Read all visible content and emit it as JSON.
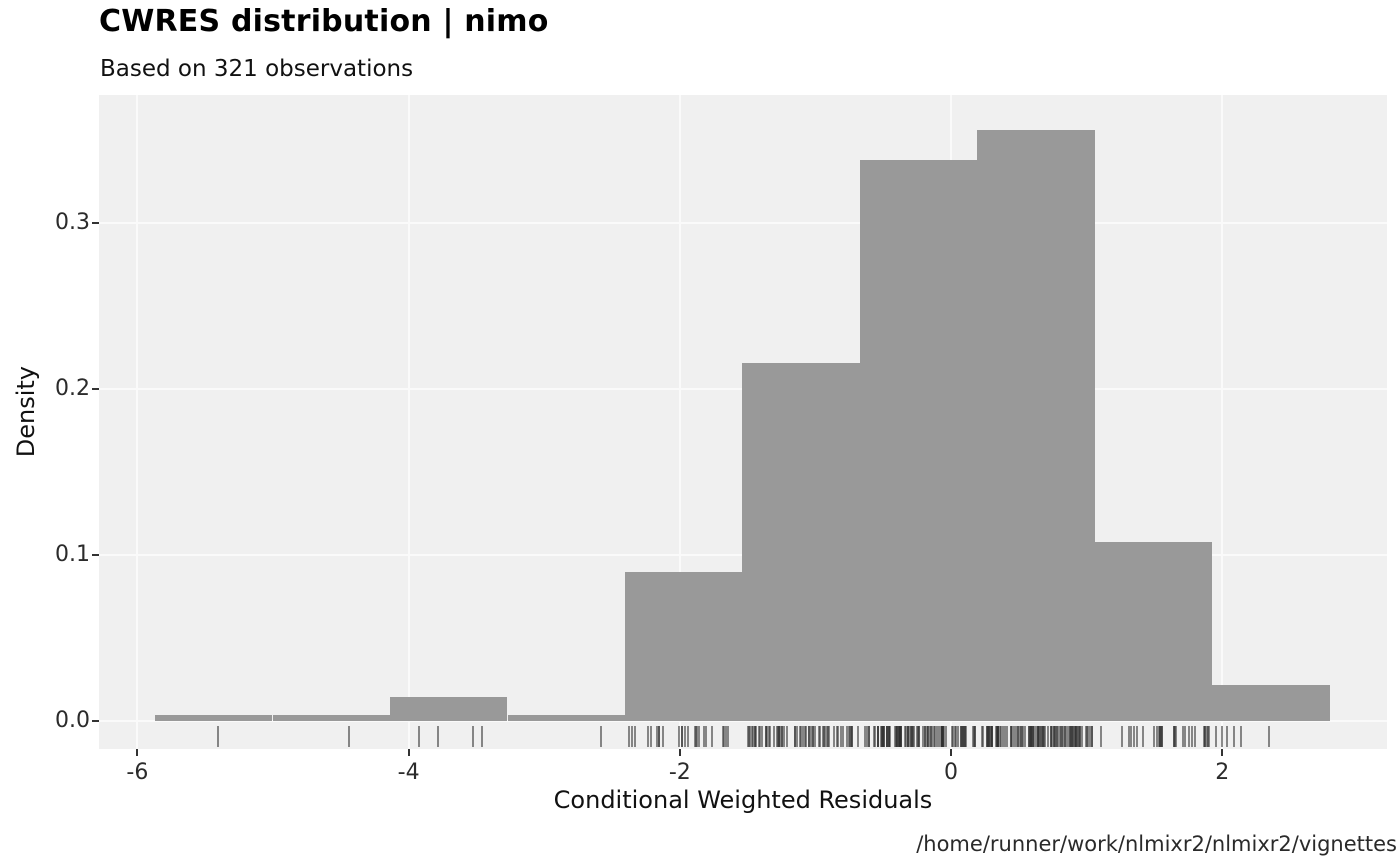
{
  "header": {
    "title": "CWRES distribution | nimo",
    "subtitle": "Based on 321 observations"
  },
  "caption": "/home/runner/work/nlmixr2/nlmixr2/vignettes",
  "chart_data": {
    "type": "bar",
    "subtype": "histogram-density-with-rug",
    "title": "CWRES distribution | nimo",
    "subtitle": "Based on 321 observations",
    "xlabel": "Conditional Weighted Residuals",
    "ylabel": "Density",
    "n_observations": 321,
    "binwidth": 0.866,
    "xlim": [
      -6.28,
      3.21
    ],
    "ylim": [
      0,
      0.377
    ],
    "x_ticks": [
      -6,
      -4,
      -2,
      0,
      2
    ],
    "x_tick_labels": [
      "-6",
      "-4",
      "-2",
      "0",
      "2"
    ],
    "y_ticks": [
      0.0,
      0.1,
      0.2,
      0.3
    ],
    "y_tick_labels": [
      "0.0",
      "0.1",
      "0.2",
      "0.3"
    ],
    "grid": true,
    "legend": "none",
    "bins": [
      {
        "x0": -5.871,
        "x1": -5.004,
        "count": 1,
        "density": 0.0036
      },
      {
        "x0": -5.004,
        "x1": -4.137,
        "count": 1,
        "density": 0.0036
      },
      {
        "x0": -4.137,
        "x1": -3.271,
        "count": 4,
        "density": 0.0144
      },
      {
        "x0": -3.271,
        "x1": -2.404,
        "count": 1,
        "density": 0.0036
      },
      {
        "x0": -2.404,
        "x1": -1.538,
        "count": 25,
        "density": 0.0899
      },
      {
        "x0": -1.538,
        "x1": -0.671,
        "count": 60,
        "density": 0.2157
      },
      {
        "x0": -0.671,
        "x1": 0.195,
        "count": 94,
        "density": 0.338
      },
      {
        "x0": 0.195,
        "x1": 1.062,
        "count": 99,
        "density": 0.356
      },
      {
        "x0": 1.062,
        "x1": 1.928,
        "count": 30,
        "density": 0.1079
      },
      {
        "x0": 1.928,
        "x1": 2.795,
        "count": 6,
        "density": 0.0216
      }
    ],
    "rug": {
      "explicit_values": [
        -5.41,
        -4.45,
        -3.93,
        -3.79,
        -3.53,
        -3.47,
        -2.59,
        1.95,
        1.99,
        2.03,
        2.08,
        2.13,
        2.34
      ],
      "generated_bins": [
        {
          "from": -2.404,
          "to": -1.538,
          "count": 25
        },
        {
          "from": -1.538,
          "to": -0.671,
          "count": 60
        },
        {
          "from": -0.671,
          "to": 0.195,
          "count": 94
        },
        {
          "from": 0.195,
          "to": 1.062,
          "count": 99
        },
        {
          "from": 1.062,
          "to": 1.928,
          "count": 30
        }
      ]
    },
    "colors": {
      "bar": "#999999",
      "panel_background": "#F0F0F0",
      "gridline": "#FAFAFA",
      "rug": "rgba(45,45,45,0.55)",
      "tick": "#333333",
      "axis_text": "#2b2b2b",
      "title_text": "#000000"
    }
  }
}
